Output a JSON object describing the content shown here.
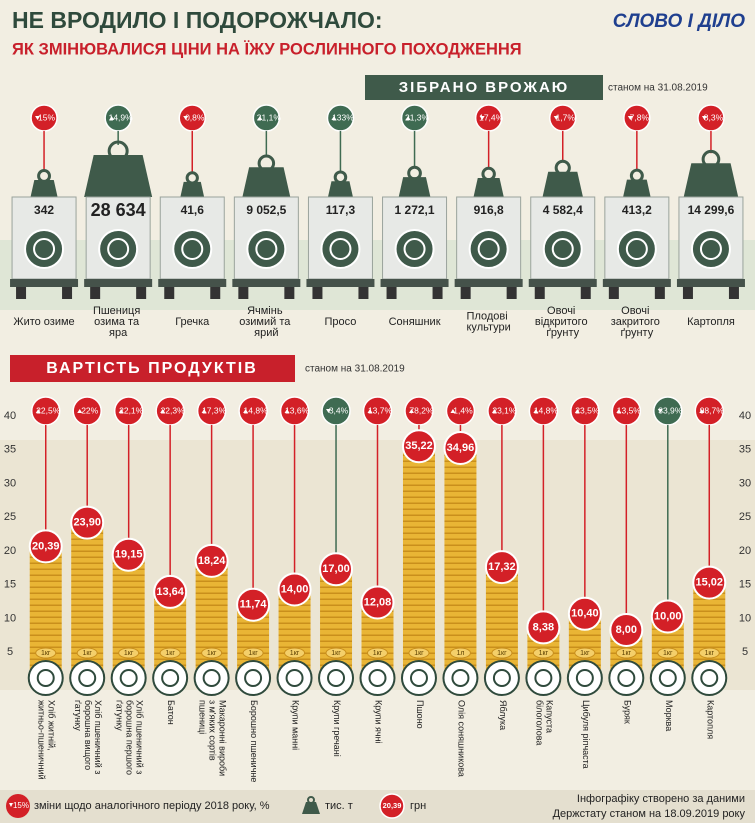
{
  "header": {
    "title": "НЕ ВРОДИЛО І ПОДОРОЖЧАЛО:",
    "subtitle": "ЯК ЗМІНЮВАЛИСЯ ЦІНИ НА ЇЖУ РОСЛИННОГО ПОХОДЖЕННЯ",
    "logo": "СЛОВО І ДІЛО"
  },
  "chart_data": [
    {
      "type": "pictorial",
      "title": "ЗІБРАНО ВРОЖАЮ",
      "note": "станом на 31.08.2019",
      "categories": [
        "Жито озиме",
        "Пшениця озима та яра",
        "Гречка",
        "Ячмінь озимий та ярий",
        "Просо",
        "Соняшник",
        "Плодові культури",
        "Овочі відкритого ґрунту",
        "Овочі закритого ґрунту",
        "Картопля"
      ],
      "values": [
        342,
        28634,
        41.6,
        9052.5,
        117.3,
        1272.1,
        916.8,
        4582.4,
        413.2,
        14299.6
      ],
      "value_labels": [
        "342",
        "28 634",
        "41,6",
        "9 052,5",
        "117,3",
        "1 272,1",
        "916,8",
        "4 582,4",
        "413,2",
        "14 299,6"
      ],
      "changes": [
        -15,
        14.9,
        -0.8,
        21.1,
        133,
        21.3,
        -17.4,
        -1.7,
        -7.8,
        -8.3
      ],
      "change_labels": [
        "15%",
        "14,9%",
        "0,8%",
        "21,1%",
        "133%",
        "21,3%",
        "17,4%",
        "1,7%",
        "7,8%",
        "8,3%"
      ],
      "increase_color": "#3f6b52",
      "decrease_color": "#d32027",
      "color": "#3f5a4a"
    },
    {
      "type": "bar",
      "title": "ВАРТІСТЬ ПРОДУКТІВ",
      "note": "станом на 31.08.2019",
      "categories": [
        "Хліб житній, житньо-пшеничний",
        "Хліб пшеничний з борошна вищого ґатунку",
        "Хліб пшеничний з борошна першого ґатунку",
        "Батон",
        "Макаронні вироби з м'яких сортів пшениці",
        "Борошно пшеничне",
        "Крупи манні",
        "Крупи гречані",
        "Крупи ячні",
        "Пшоно",
        "Олія соняшникова",
        "Яблука",
        "Капуста білоголова",
        "Цибуля ріпчаста",
        "Буряк",
        "Морква",
        "Картопля"
      ],
      "values": [
        20.39,
        23.9,
        19.15,
        13.64,
        18.24,
        11.74,
        14.0,
        17.0,
        12.08,
        35.22,
        34.96,
        17.32,
        8.38,
        10.4,
        8.0,
        10.0,
        15.02
      ],
      "value_labels": [
        "20,39",
        "23,90",
        "19,15",
        "13,64",
        "18,24",
        "11,74",
        "14,00",
        "17,00",
        "12,08",
        "35,22",
        "34,96",
        "17,32",
        "8,38",
        "10,40",
        "8,00",
        "10,00",
        "15,02"
      ],
      "changes": [
        22.5,
        22,
        22.1,
        22.3,
        17.3,
        14.8,
        13.6,
        -3.4,
        13.7,
        78.2,
        1.4,
        23.1,
        14.8,
        23.5,
        13.5,
        -33.9,
        98.7
      ],
      "change_labels": [
        "22,5%",
        "22%",
        "22,1%",
        "22,3%",
        "17,3%",
        "14,8%",
        "13,6%",
        "3,4%",
        "13,7%",
        "78,2%",
        "1,4%",
        "23,1%",
        "14,8%",
        "23,5%",
        "13,5%",
        "33,9%",
        "98,7%"
      ],
      "units": [
        "1кг",
        "1кг",
        "1кг",
        "1кг",
        "1кг",
        "1кг",
        "1кг",
        "1кг",
        "1кг",
        "1кг",
        "1л",
        "1кг",
        "1кг",
        "1кг",
        "1кг",
        "1кг",
        "1кг"
      ],
      "increase_color": "#d32027",
      "decrease_color": "#3f6b52",
      "color": "#e9b535",
      "ylim": [
        0,
        40
      ],
      "yticks": [
        5,
        10,
        15,
        20,
        25,
        30,
        35,
        40
      ]
    }
  ],
  "legend": {
    "change_icon": "15%",
    "change": "зміни щодо аналогічного періоду 2018 року, %",
    "harvest": "тис. т",
    "price_icon": "20,39",
    "price": "грн"
  },
  "footer": {
    "line1": "Інфографіку створено за даними",
    "line2": "Держстату станом на 18.09.2019 року"
  }
}
